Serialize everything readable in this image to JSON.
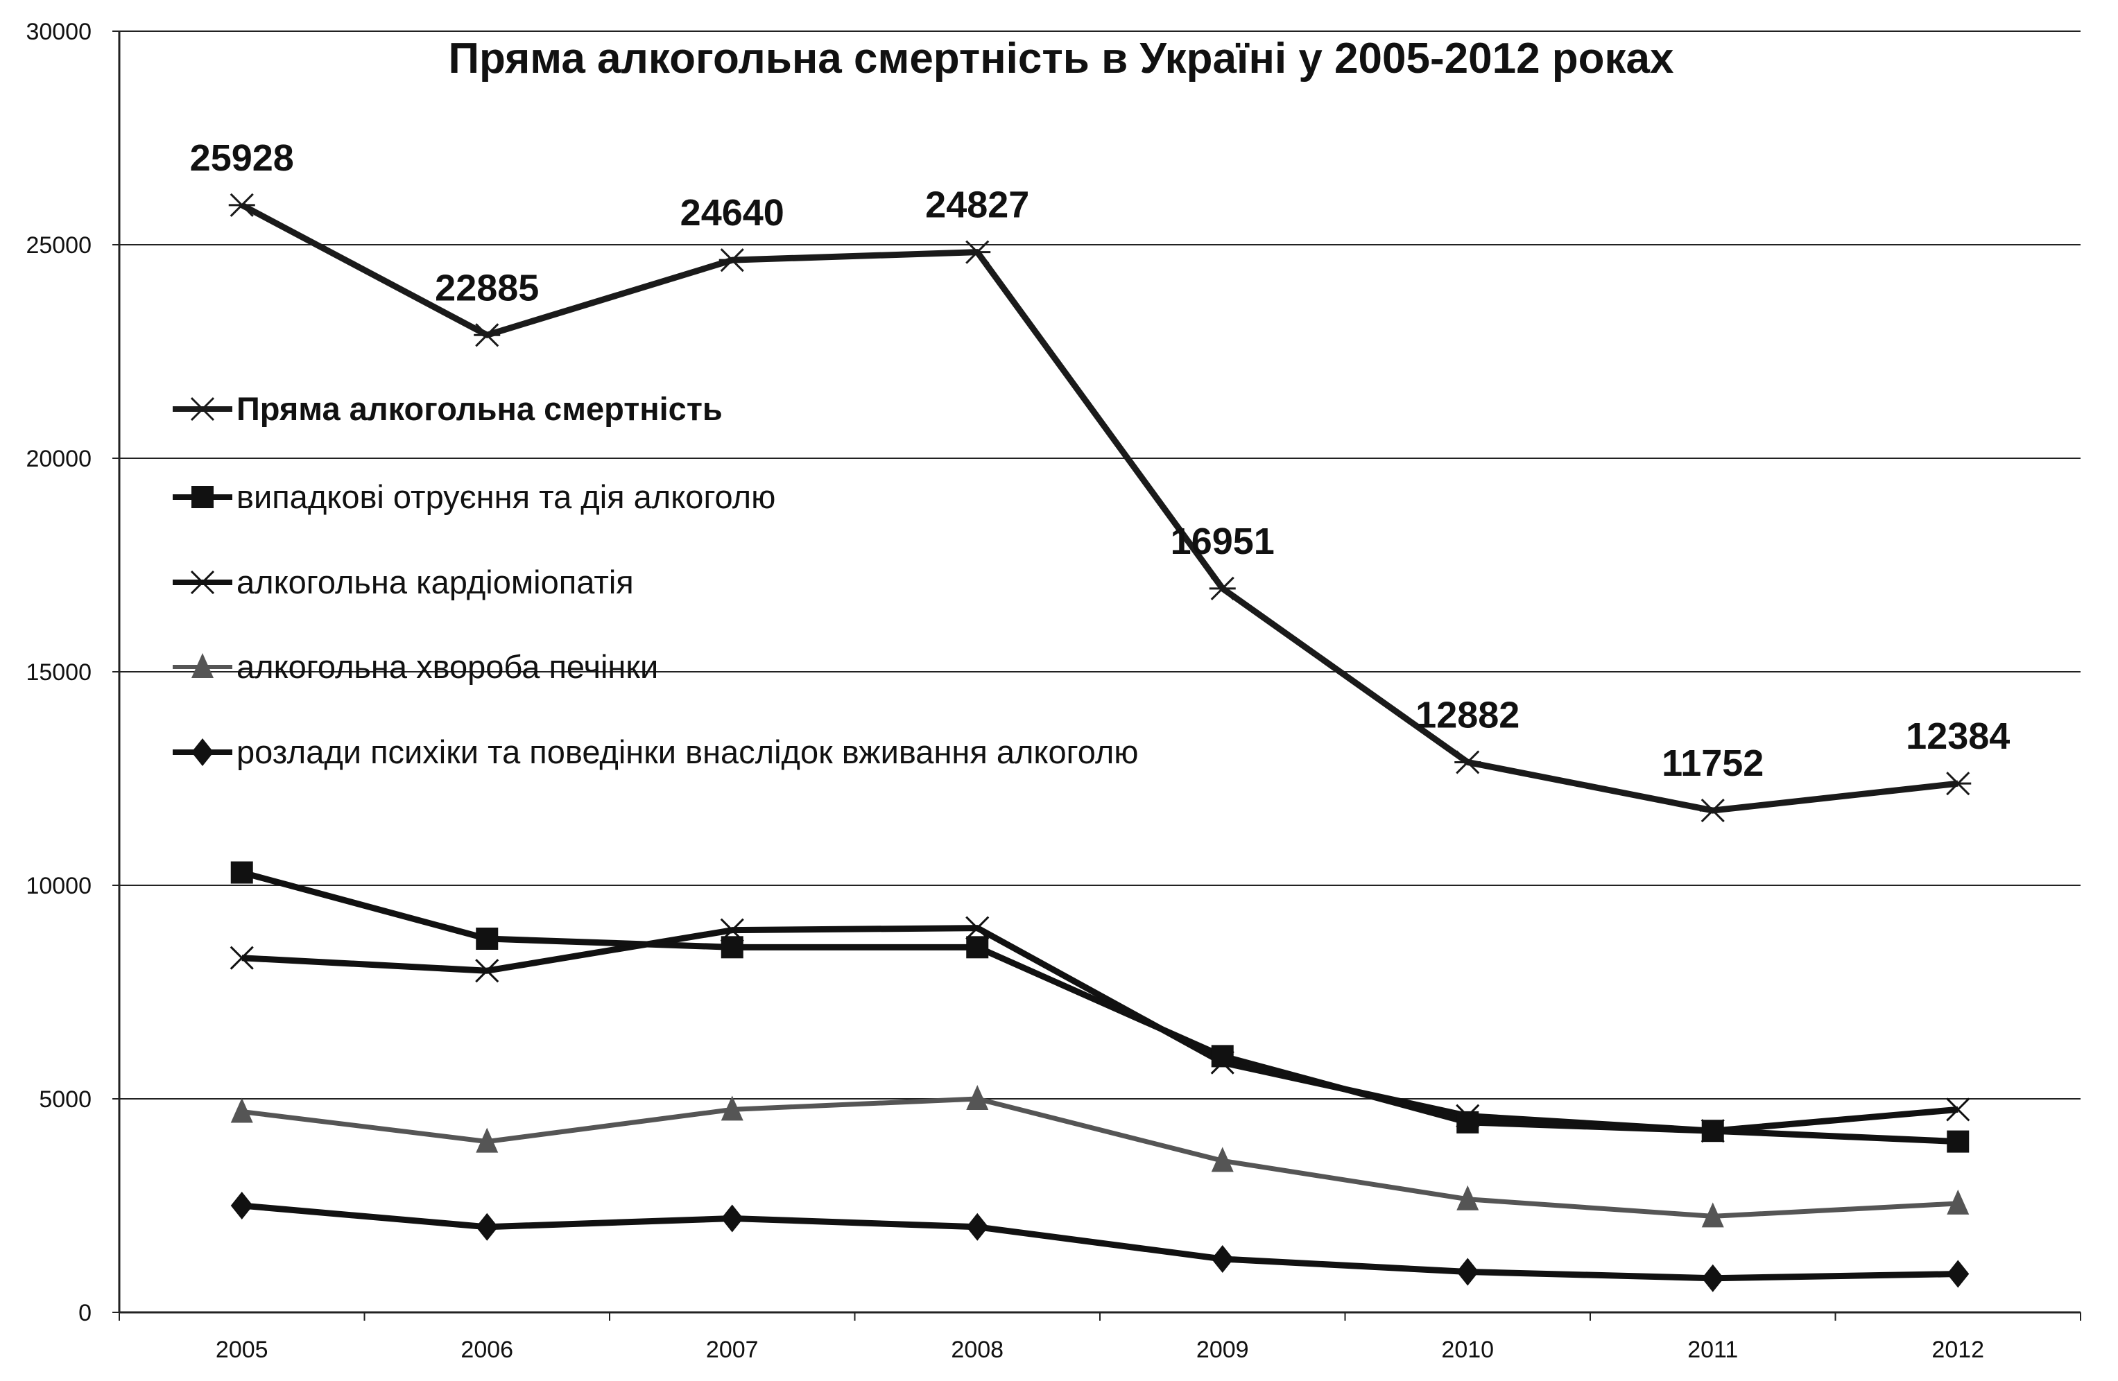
{
  "chart_data": {
    "type": "line",
    "title": "Пряма алкогольна смертність в Україні у 2005-2012 роках",
    "xlabel": "",
    "ylabel": "",
    "categories": [
      "2005",
      "2006",
      "2007",
      "2008",
      "2009",
      "2010",
      "2011",
      "2012"
    ],
    "ylim": [
      0,
      30000
    ],
    "yticks": [
      0,
      5000,
      10000,
      15000,
      20000,
      25000,
      30000
    ],
    "ytick_labels": [
      "0",
      "5000",
      "10000",
      "15000",
      "20000",
      "25000",
      "30000"
    ],
    "grid": true,
    "legend_position": "left, inside plot area",
    "series": [
      {
        "name": "Пряма алкогольна смертність",
        "marker": "asterisk",
        "color": "#1a1a1a",
        "values": [
          25928,
          22885,
          24640,
          24827,
          16951,
          12882,
          11752,
          12384
        ],
        "data_labels": [
          "25928",
          "22885",
          "24640",
          "24827",
          "16951",
          "12882",
          "11752",
          "12384"
        ]
      },
      {
        "name": "випадкові отруєння та дія алкоголю",
        "marker": "square",
        "color": "#111111",
        "values": [
          10300,
          8750,
          8550,
          8550,
          6000,
          4450,
          4250,
          4000
        ]
      },
      {
        "name": "алкогольна кардіоміопатія",
        "marker": "x",
        "color": "#111111",
        "values": [
          8300,
          8000,
          8950,
          9000,
          5850,
          4600,
          4250,
          4750
        ]
      },
      {
        "name": "алкогольна хвороба печінки",
        "marker": "triangle",
        "color": "#555555",
        "values": [
          4700,
          4000,
          4750,
          5000,
          3550,
          2650,
          2250,
          2550
        ]
      },
      {
        "name": "розлади психіки та поведінки внаслідок вживання алкоголю",
        "marker": "diamond",
        "color": "#111111",
        "values": [
          2500,
          2000,
          2200,
          2000,
          1250,
          950,
          800,
          900
        ]
      }
    ]
  }
}
